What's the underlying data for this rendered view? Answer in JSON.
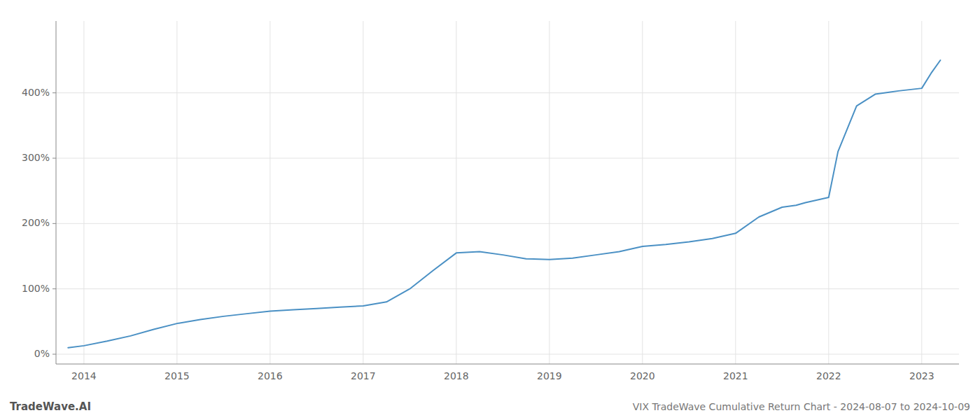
{
  "chart_data": {
    "type": "line",
    "title": "VIX TradeWave Cumulative Return Chart - 2024-08-07 to 2024-10-09",
    "watermark": "TradeWave.AI",
    "color": "#4a90c4",
    "x": [
      2013.83,
      2014.0,
      2014.25,
      2014.5,
      2014.75,
      2015.0,
      2015.25,
      2015.5,
      2015.75,
      2016.0,
      2016.25,
      2016.5,
      2016.75,
      2017.0,
      2017.25,
      2017.5,
      2017.75,
      2018.0,
      2018.25,
      2018.5,
      2018.75,
      2019.0,
      2019.25,
      2019.5,
      2019.75,
      2020.0,
      2020.25,
      2020.5,
      2020.75,
      2021.0,
      2021.25,
      2021.5,
      2021.65,
      2021.75,
      2022.0,
      2022.1,
      2022.3,
      2022.5,
      2022.75,
      2023.0,
      2023.1,
      2023.2
    ],
    "values": [
      10,
      13,
      20,
      28,
      38,
      47,
      53,
      58,
      62,
      66,
      68,
      70,
      72,
      74,
      80,
      100,
      128,
      155,
      157,
      152,
      146,
      145,
      147,
      152,
      157,
      165,
      168,
      172,
      177,
      185,
      210,
      225,
      228,
      232,
      240,
      310,
      380,
      398,
      403,
      407,
      430,
      450
    ],
    "xlim": [
      2013.7,
      2023.4
    ],
    "ylim": [
      -15,
      510
    ],
    "xticks": [
      2014,
      2015,
      2016,
      2017,
      2018,
      2019,
      2020,
      2021,
      2022,
      2023
    ],
    "yticks": [
      {
        "value": 0,
        "label": "0%"
      },
      {
        "value": 100,
        "label": "100%"
      },
      {
        "value": 200,
        "label": "200%"
      },
      {
        "value": 300,
        "label": "300%"
      },
      {
        "value": 400,
        "label": "400%"
      }
    ],
    "grid": true
  }
}
